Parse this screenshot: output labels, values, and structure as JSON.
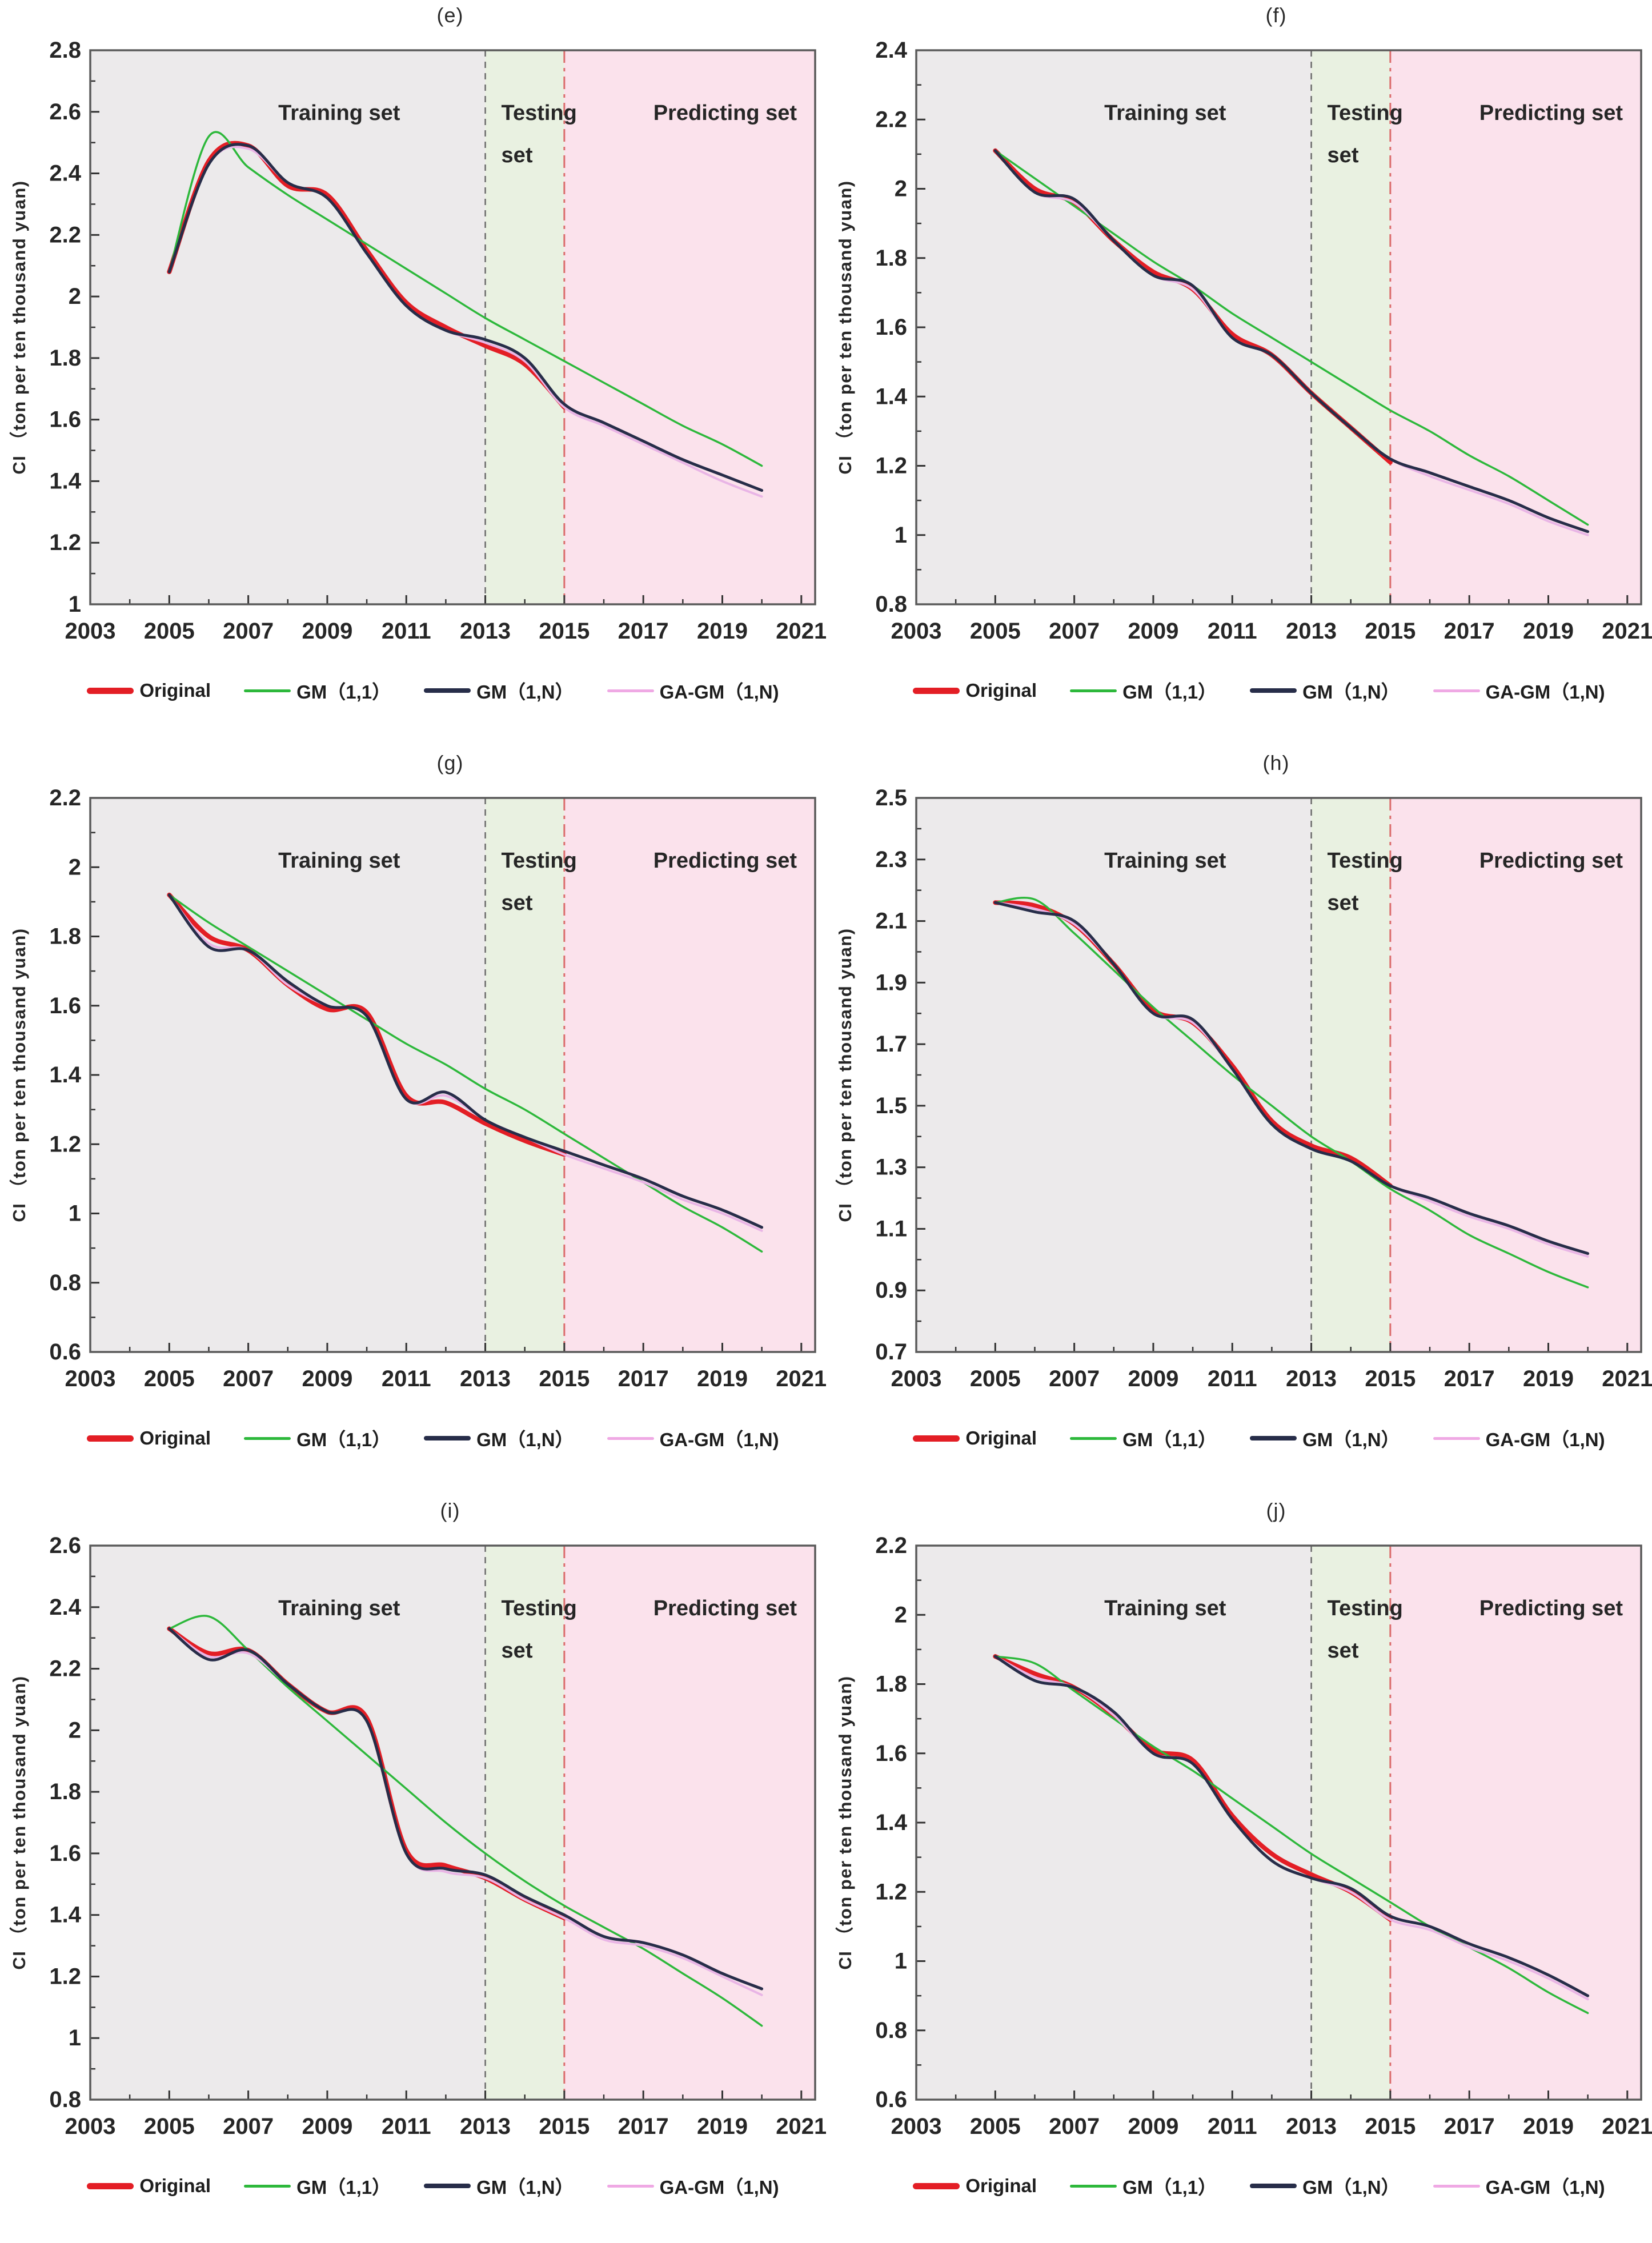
{
  "page": {
    "background": "#ffffff"
  },
  "colors": {
    "original": "#E31E25",
    "gm11": "#2DB83B",
    "gm1n": "#272D49",
    "gagm": "#E9B5E6",
    "training_bg": "#ECEAEB",
    "testing_bg": "#E9F1E1",
    "predicting_bg": "#FBE2EC",
    "plot_border": "#5A5A5A",
    "axis_tick": "#333333",
    "divider_2013": "#6A6A6A",
    "divider_2015": "#DB6B6B"
  },
  "regions": {
    "training_label": "Training set",
    "testing_label_line1": "Testing",
    "testing_label_line2": "set",
    "predicting_label": "Predicting set",
    "training_start_year": 2003,
    "testing_start_year": 2013,
    "predicting_start_year": 2015
  },
  "axis": {
    "x_tick_labels": [
      2003,
      2005,
      2007,
      2009,
      2011,
      2013,
      2015,
      2017,
      2019,
      2021
    ],
    "x_minor_tick_years_start": 2003,
    "x_minor_tick_years_end": 2021,
    "x_domain": [
      2003,
      2021.35
    ],
    "series_years_start": 2005,
    "series_years_end": 2020,
    "original_years_end": 2015
  },
  "legend": {
    "items": [
      {
        "label": "Original",
        "color": "#E31E25",
        "thickness": 11
      },
      {
        "label": "GM（1,1）",
        "color": "#2DB83B",
        "thickness": 5
      },
      {
        "label": "GM（1,N）",
        "color": "#272D49",
        "thickness": 8
      },
      {
        "label": "GA-GM（1,N)",
        "color": "#EFA9E4",
        "thickness": 5
      }
    ]
  },
  "chart_data": [
    {
      "panel_label": "(e)",
      "type": "line",
      "ylabel": "CI （ton per ten thousand yuan)",
      "ylim": [
        1.0,
        2.8
      ],
      "ytick_step": 0.2,
      "x_years": [
        2005,
        2006,
        2007,
        2008,
        2009,
        2010,
        2011,
        2012,
        2013,
        2014,
        2015,
        2016,
        2017,
        2018,
        2019,
        2020
      ],
      "series": [
        {
          "name": "Original",
          "values": [
            2.08,
            2.44,
            2.49,
            2.36,
            2.33,
            2.15,
            1.98,
            1.9,
            1.84,
            1.78,
            1.64
          ]
        },
        {
          "name": "GM（1,1）",
          "values": [
            2.08,
            2.52,
            2.42,
            2.33,
            2.25,
            2.17,
            2.09,
            2.01,
            1.93,
            1.86,
            1.79,
            1.72,
            1.65,
            1.58,
            1.52,
            1.45
          ]
        },
        {
          "name": "GM（1,N）",
          "values": [
            2.08,
            2.43,
            2.49,
            2.37,
            2.32,
            2.14,
            1.97,
            1.89,
            1.86,
            1.8,
            1.65,
            1.59,
            1.53,
            1.47,
            1.42,
            1.37
          ]
        },
        {
          "name": "GA-GM（1,N)",
          "values": [
            2.08,
            2.43,
            2.48,
            2.37,
            2.32,
            2.14,
            1.97,
            1.89,
            1.85,
            1.79,
            1.64,
            1.58,
            1.52,
            1.46,
            1.4,
            1.35
          ]
        }
      ]
    },
    {
      "panel_label": "(f)",
      "type": "line",
      "ylabel": "CI （ton per ten thousand yuan)",
      "ylim": [
        0.8,
        2.4
      ],
      "ytick_step": 0.2,
      "x_years": [
        2005,
        2006,
        2007,
        2008,
        2009,
        2010,
        2011,
        2012,
        2013,
        2014,
        2015,
        2016,
        2017,
        2018,
        2019,
        2020
      ],
      "series": [
        {
          "name": "Original",
          "values": [
            2.11,
            2.0,
            1.96,
            1.85,
            1.76,
            1.71,
            1.58,
            1.52,
            1.41,
            1.31,
            1.21
          ]
        },
        {
          "name": "GM（1,1）",
          "values": [
            2.11,
            2.03,
            1.95,
            1.87,
            1.79,
            1.72,
            1.64,
            1.57,
            1.5,
            1.43,
            1.36,
            1.3,
            1.23,
            1.17,
            1.1,
            1.03
          ]
        },
        {
          "name": "GM（1,N）",
          "values": [
            2.11,
            1.99,
            1.97,
            1.85,
            1.75,
            1.72,
            1.57,
            1.52,
            1.41,
            1.31,
            1.22,
            1.18,
            1.14,
            1.1,
            1.05,
            1.01
          ]
        },
        {
          "name": "GA-GM（1,N)",
          "values": [
            2.11,
            1.99,
            1.96,
            1.85,
            1.75,
            1.71,
            1.57,
            1.52,
            1.41,
            1.31,
            1.22,
            1.17,
            1.13,
            1.09,
            1.04,
            1.0
          ]
        }
      ]
    },
    {
      "panel_label": "(g)",
      "type": "line",
      "ylabel": "CI （ton per ten thousand yuan)",
      "ylim": [
        0.6,
        2.2
      ],
      "ytick_step": 0.2,
      "x_years": [
        2005,
        2006,
        2007,
        2008,
        2009,
        2010,
        2011,
        2012,
        2013,
        2014,
        2015,
        2016,
        2017,
        2018,
        2019,
        2020
      ],
      "series": [
        {
          "name": "Original",
          "values": [
            1.92,
            1.8,
            1.76,
            1.66,
            1.59,
            1.58,
            1.34,
            1.32,
            1.26,
            1.21,
            1.17
          ]
        },
        {
          "name": "GM（1,1）",
          "values": [
            1.92,
            1.84,
            1.77,
            1.7,
            1.63,
            1.56,
            1.49,
            1.43,
            1.36,
            1.3,
            1.23,
            1.16,
            1.09,
            1.02,
            0.96,
            0.89
          ]
        },
        {
          "name": "GM（1,N）",
          "values": [
            1.92,
            1.77,
            1.76,
            1.67,
            1.6,
            1.57,
            1.33,
            1.35,
            1.27,
            1.22,
            1.18,
            1.14,
            1.1,
            1.05,
            1.01,
            0.96
          ]
        },
        {
          "name": "GA-GM（1,N)",
          "values": [
            1.92,
            1.78,
            1.76,
            1.66,
            1.6,
            1.57,
            1.33,
            1.34,
            1.27,
            1.22,
            1.17,
            1.13,
            1.09,
            1.04,
            1.0,
            0.95
          ]
        }
      ]
    },
    {
      "panel_label": "(h)",
      "type": "line",
      "ylabel": "CI （ton per ten thousand yuan)",
      "ylim": [
        0.7,
        2.5
      ],
      "ytick_step": 0.2,
      "x_years": [
        2005,
        2006,
        2007,
        2008,
        2009,
        2010,
        2011,
        2012,
        2013,
        2014,
        2015,
        2016,
        2017,
        2018,
        2019,
        2020
      ],
      "series": [
        {
          "name": "Original",
          "values": [
            2.16,
            2.15,
            2.09,
            1.96,
            1.81,
            1.77,
            1.63,
            1.45,
            1.37,
            1.33,
            1.24
          ]
        },
        {
          "name": "GM（1,1）",
          "values": [
            2.16,
            2.17,
            2.06,
            1.94,
            1.82,
            1.71,
            1.6,
            1.5,
            1.4,
            1.32,
            1.23,
            1.16,
            1.08,
            1.02,
            0.96,
            0.91
          ]
        },
        {
          "name": "GM（1,N）",
          "values": [
            2.16,
            2.13,
            2.1,
            1.96,
            1.8,
            1.78,
            1.62,
            1.44,
            1.36,
            1.32,
            1.24,
            1.2,
            1.15,
            1.11,
            1.06,
            1.02
          ]
        },
        {
          "name": "GA-GM（1,N)",
          "values": [
            2.16,
            2.14,
            2.09,
            1.96,
            1.8,
            1.77,
            1.62,
            1.44,
            1.36,
            1.32,
            1.24,
            1.19,
            1.14,
            1.1,
            1.05,
            1.01
          ]
        }
      ]
    },
    {
      "panel_label": "(i)",
      "type": "line",
      "ylabel": "CI （ton per ten thousand yuan)",
      "ylim": [
        0.8,
        2.6
      ],
      "ytick_step": 0.2,
      "x_years": [
        2005,
        2006,
        2007,
        2008,
        2009,
        2010,
        2011,
        2012,
        2013,
        2014,
        2015,
        2016,
        2017,
        2018,
        2019,
        2020
      ],
      "series": [
        {
          "name": "Original",
          "values": [
            2.33,
            2.25,
            2.26,
            2.15,
            2.06,
            2.04,
            1.61,
            1.56,
            1.52,
            1.45,
            1.39
          ]
        },
        {
          "name": "GM（1,1）",
          "values": [
            2.33,
            2.37,
            2.26,
            2.14,
            2.03,
            1.92,
            1.81,
            1.7,
            1.6,
            1.51,
            1.43,
            1.36,
            1.29,
            1.21,
            1.13,
            1.04
          ]
        },
        {
          "name": "GM（1,N）",
          "values": [
            2.33,
            2.23,
            2.26,
            2.15,
            2.06,
            2.03,
            1.6,
            1.55,
            1.53,
            1.46,
            1.4,
            1.33,
            1.31,
            1.27,
            1.21,
            1.16
          ]
        },
        {
          "name": "GA-GM（1,N)",
          "values": [
            2.33,
            2.24,
            2.25,
            2.15,
            2.06,
            2.03,
            1.6,
            1.54,
            1.52,
            1.45,
            1.39,
            1.32,
            1.3,
            1.26,
            1.2,
            1.14
          ]
        }
      ]
    },
    {
      "panel_label": "(j)",
      "type": "line",
      "ylabel": "CI （ton per ten thousand yuan)",
      "ylim": [
        0.6,
        2.2
      ],
      "ytick_step": 0.2,
      "x_years": [
        2005,
        2006,
        2007,
        2008,
        2009,
        2010,
        2011,
        2012,
        2013,
        2014,
        2015,
        2016,
        2017,
        2018,
        2019,
        2020
      ],
      "series": [
        {
          "name": "Original",
          "values": [
            1.88,
            1.83,
            1.79,
            1.71,
            1.61,
            1.58,
            1.42,
            1.31,
            1.25,
            1.2,
            1.12
          ]
        },
        {
          "name": "GM（1,1）",
          "values": [
            1.88,
            1.86,
            1.78,
            1.7,
            1.62,
            1.55,
            1.47,
            1.39,
            1.31,
            1.24,
            1.17,
            1.1,
            1.04,
            0.98,
            0.91,
            0.85
          ]
        },
        {
          "name": "GM（1,N）",
          "values": [
            1.88,
            1.81,
            1.79,
            1.72,
            1.6,
            1.57,
            1.41,
            1.29,
            1.24,
            1.21,
            1.13,
            1.1,
            1.05,
            1.01,
            0.96,
            0.9
          ]
        },
        {
          "name": "GA-GM（1,N)",
          "values": [
            1.88,
            1.82,
            1.79,
            1.71,
            1.6,
            1.57,
            1.41,
            1.29,
            1.24,
            1.2,
            1.12,
            1.09,
            1.04,
            1.0,
            0.95,
            0.89
          ]
        }
      ]
    }
  ]
}
